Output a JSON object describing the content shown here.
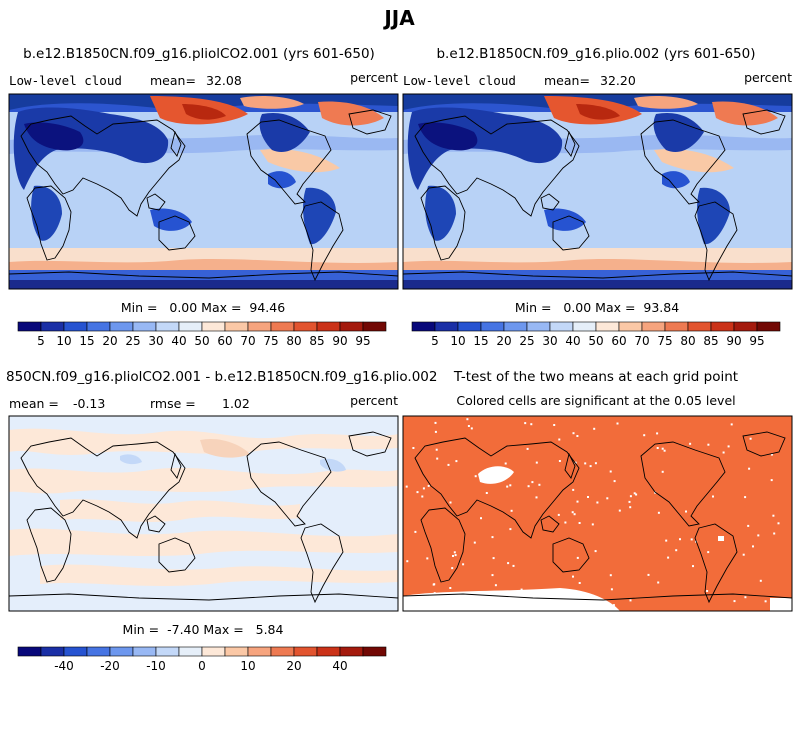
{
  "title": "JJA",
  "chart_data": [
    {
      "type": "heatmap",
      "title": "b.e12.B1850CN.f09_g16.pliolCO2.001 (yrs 601-650)",
      "variable": "Low-level cloud",
      "mean_label": "mean=",
      "mean_value": "32.08",
      "units": "percent",
      "stats": "Min =   0.00 Max =  94.46",
      "min": 0.0,
      "max": 94.46,
      "colorbar_levels": [
        5,
        10,
        15,
        20,
        25,
        30,
        40,
        50,
        60,
        70,
        75,
        80,
        85,
        90,
        95
      ],
      "colorbar_colors": [
        "#08087a",
        "#1a2fa6",
        "#2653d1",
        "#4674e3",
        "#6d97ee",
        "#98b8f4",
        "#c3d8f8",
        "#e6eff9",
        "#fde8d8",
        "#fbc8a6",
        "#f6a47e",
        "#ee7a52",
        "#e2542f",
        "#cb3218",
        "#a41a0d",
        "#720804"
      ]
    },
    {
      "type": "heatmap",
      "title": "b.e12.B1850CN.f09_g16.plio.002 (yrs 601-650)",
      "variable": "Low-level cloud",
      "mean_label": "mean=",
      "mean_value": "32.20",
      "units": "percent",
      "stats": "Min =   0.00 Max =  93.84",
      "min": 0.0,
      "max": 93.84,
      "colorbar_levels": [
        5,
        10,
        15,
        20,
        25,
        30,
        40,
        50,
        60,
        70,
        75,
        80,
        85,
        90,
        95
      ],
      "colorbar_colors": [
        "#08087a",
        "#1a2fa6",
        "#2653d1",
        "#4674e3",
        "#6d97ee",
        "#98b8f4",
        "#c3d8f8",
        "#e6eff9",
        "#fde8d8",
        "#fbc8a6",
        "#f6a47e",
        "#ee7a52",
        "#e2542f",
        "#cb3218",
        "#a41a0d",
        "#720804"
      ]
    },
    {
      "type": "heatmap",
      "title": "850CN.f09_g16.pliolCO2.001 - b.e12.B1850CN.f09_g16.plio.002",
      "mean_label": "mean =",
      "mean_value": "-0.13",
      "rmse_label": "rmse =",
      "rmse_value": "1.02",
      "units": "percent",
      "stats": "Min =  -7.40 Max =   5.84",
      "min": -7.4,
      "max": 5.84,
      "colorbar_levels": [
        -50,
        -40,
        -30,
        -20,
        -15,
        -10,
        -5,
        0,
        5,
        10,
        15,
        20,
        30,
        40,
        50
      ],
      "colorbar_tick_labels": [
        "-40",
        "-20",
        "-10",
        "0",
        "10",
        "20",
        "40"
      ],
      "colorbar_colors": [
        "#08087a",
        "#1a2fa6",
        "#2653d1",
        "#4674e3",
        "#6d97ee",
        "#98b8f4",
        "#c3d8f8",
        "#e6eff9",
        "#fde8d8",
        "#fbc8a6",
        "#f6a47e",
        "#ee7a52",
        "#e2542f",
        "#cb3218",
        "#a41a0d",
        "#720804"
      ]
    },
    {
      "type": "heatmap",
      "title": "T-test of the two means at each grid point",
      "subtitle": "Colored cells are significant at the 0.05 level",
      "significant_color": "#f26c3a"
    }
  ]
}
